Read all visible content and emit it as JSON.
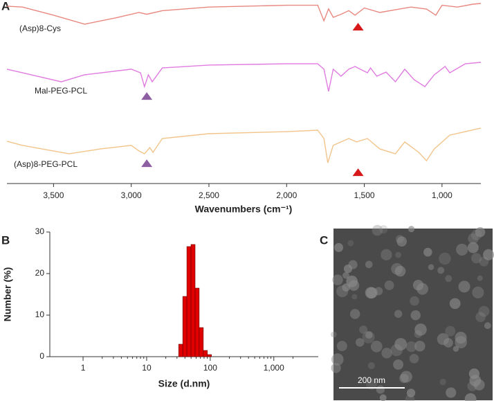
{
  "chart_data": [
    {
      "type": "line",
      "panel": "A",
      "x_label": "Wavenumbers (cm⁻¹)",
      "xlim": [
        3800,
        750
      ],
      "ylim": [
        0,
        100
      ],
      "xticks": [
        {
          "value": 3500,
          "label": "3,500"
        },
        {
          "value": 3000,
          "label": "3,000"
        },
        {
          "value": 2500,
          "label": "2,500"
        },
        {
          "value": 2000,
          "label": "2,000"
        },
        {
          "value": 1500,
          "label": "1,500"
        },
        {
          "value": 1000,
          "label": "1,000"
        }
      ],
      "series": [
        {
          "name": "(Asp)8-Cys",
          "color": "#e8877f",
          "x": [
            3800,
            3700,
            3500,
            3300,
            3100,
            2950,
            2900,
            2800,
            2500,
            2000,
            1800,
            1760,
            1730,
            1700,
            1650,
            1600,
            1560,
            1500,
            1400,
            1300,
            1200,
            1100,
            1040,
            1000,
            900,
            800,
            750
          ],
          "values": [
            98.5,
            98,
            93.5,
            88.5,
            92,
            95,
            94,
            96,
            98,
            99,
            99,
            90.4,
            97,
            92.3,
            94,
            96,
            93.5,
            97.5,
            95,
            96.5,
            98,
            96.9,
            93.5,
            99,
            98,
            99.6,
            100
          ]
        },
        {
          "name": "Mal-PEG-PCL",
          "color": "#e07be0",
          "x": [
            3800,
            3700,
            3450,
            3300,
            3000,
            2940,
            2915,
            2890,
            2865,
            2800,
            2500,
            2000,
            1800,
            1760,
            1730,
            1700,
            1650,
            1600,
            1560,
            1480,
            1460,
            1420,
            1360,
            1300,
            1240,
            1180,
            1110,
            1050,
            980,
            950,
            850,
            750
          ],
          "values": [
            63.5,
            61.5,
            56.5,
            60.4,
            63.5,
            61.5,
            53.8,
            60.4,
            56.5,
            64.2,
            65.8,
            66.5,
            66.5,
            63.5,
            51.2,
            63.5,
            59.6,
            63.5,
            65,
            61.5,
            64.2,
            59.6,
            61.9,
            56.5,
            63.5,
            57.7,
            53.8,
            60.4,
            65,
            61.5,
            66.5,
            67.3
          ]
        },
        {
          "name": "(Asp)8-PEG-PCL",
          "color": "#f2c48a",
          "x": [
            3800,
            3700,
            3400,
            3200,
            3000,
            2950,
            2915,
            2880,
            2860,
            2800,
            2500,
            2000,
            1800,
            1760,
            1735,
            1700,
            1650,
            1600,
            1550,
            1480,
            1400,
            1300,
            1240,
            1150,
            1100,
            1050,
            950,
            850,
            750
          ],
          "values": [
            23.5,
            21.2,
            16.5,
            19.2,
            21.2,
            18.1,
            16.5,
            20,
            17.3,
            25,
            27.7,
            28.8,
            29.6,
            25,
            11.5,
            21.2,
            23.1,
            25,
            23.1,
            25,
            19.2,
            16.5,
            23.1,
            17.3,
            12.7,
            19.2,
            26.9,
            28.8,
            30.8
          ]
        }
      ],
      "markers": [
        {
          "series": 0,
          "x": 1540,
          "color": "#d7191c"
        },
        {
          "series": 1,
          "x": 2900,
          "color": "#8e5ea2"
        },
        {
          "series": 2,
          "x": 2900,
          "color": "#8e5ea2"
        },
        {
          "series": 2,
          "x": 1540,
          "color": "#d7191c"
        }
      ]
    },
    {
      "type": "histogram",
      "panel": "B",
      "log_x": true,
      "x_label": "Size (d.nm)",
      "y_label": "Number (%)",
      "color": "#e00000",
      "bins": [
        31.9,
        37.0,
        42.9,
        49.8,
        57.8,
        67.0,
        77.8,
        90.2,
        104.7
      ],
      "values": [
        3,
        14.5,
        26.5,
        27,
        16.5,
        7,
        1.5,
        0.5
      ],
      "xlim": [
        0.3,
        5000
      ],
      "ylim": [
        0,
        30
      ],
      "xticks": [
        1,
        10,
        100,
        {
          "value": 1000,
          "label": "1,000"
        }
      ],
      "xminorticks": [
        2,
        3,
        4,
        5,
        6,
        7,
        8,
        9,
        20,
        30,
        40,
        50,
        60,
        70,
        80,
        90,
        200,
        300,
        400,
        500,
        600,
        700,
        800,
        900,
        2000
      ],
      "yticks": [
        0,
        10,
        20,
        30
      ]
    },
    {
      "type": "image",
      "panel": "C",
      "scale_bar": "200 nm"
    }
  ]
}
